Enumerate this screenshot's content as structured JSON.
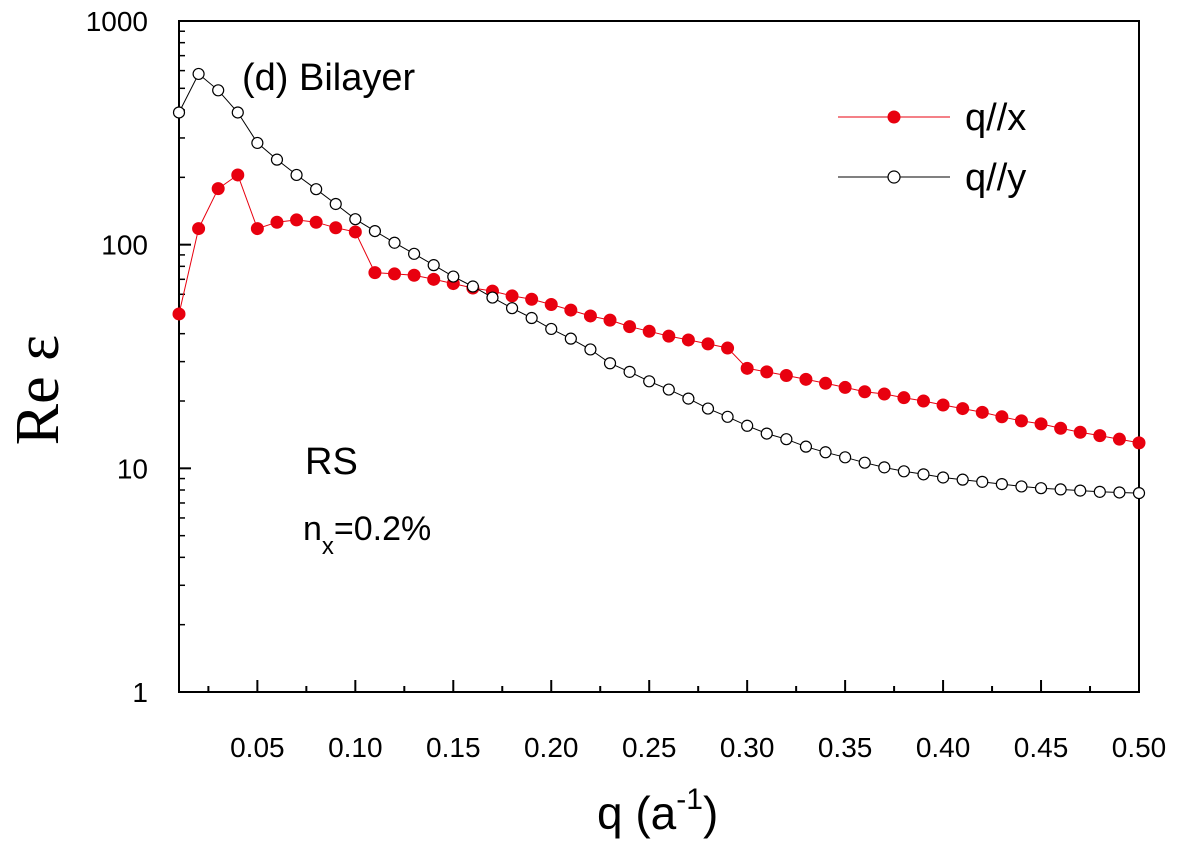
{
  "chart_data": {
    "type": "line",
    "title": "(d) Bilayer",
    "xlabel": {
      "base": "q (a",
      "sup": "-1",
      "end": ")"
    },
    "ylabel": "Re ε",
    "xlim": [
      0.01,
      0.5
    ],
    "ylim": [
      1,
      1000
    ],
    "yscale": "log",
    "grid": false,
    "legend_position": "top-right",
    "x_ticks": [
      "0.05",
      "0.10",
      "0.15",
      "0.20",
      "0.25",
      "0.30",
      "0.35",
      "0.40",
      "0.45",
      "0.50"
    ],
    "y_ticks": [
      "1",
      "10",
      "100",
      "1000"
    ],
    "annotations": {
      "line1": "RS",
      "line2_base": "n",
      "line2_sub": "x",
      "line2_end": "=0.2%"
    },
    "x": [
      0.01,
      0.02,
      0.03,
      0.04,
      0.05,
      0.06,
      0.07,
      0.08,
      0.09,
      0.1,
      0.11,
      0.12,
      0.13,
      0.14,
      0.15,
      0.16,
      0.17,
      0.18,
      0.19,
      0.2,
      0.21,
      0.22,
      0.23,
      0.24,
      0.25,
      0.26,
      0.27,
      0.28,
      0.29,
      0.3,
      0.31,
      0.32,
      0.33,
      0.34,
      0.35,
      0.36,
      0.37,
      0.38,
      0.39,
      0.4,
      0.41,
      0.42,
      0.43,
      0.44,
      0.45,
      0.46,
      0.47,
      0.48,
      0.49,
      0.5
    ],
    "series": [
      {
        "name": "q//x",
        "color": "#e8000f",
        "marker": "filled-circle",
        "values": [
          49,
          118,
          178,
          205,
          118,
          126,
          129,
          126,
          119,
          114,
          75,
          74,
          73,
          70,
          67,
          64,
          62,
          59,
          57,
          54,
          51,
          48,
          46,
          43,
          41,
          39,
          37.5,
          36,
          34.5,
          28,
          27,
          26,
          25,
          24,
          23,
          22,
          21.5,
          20.7,
          20,
          19.2,
          18.5,
          17.8,
          17,
          16.3,
          15.8,
          15.1,
          14.5,
          14,
          13.5,
          13
        ]
      },
      {
        "name": "q//y",
        "color": "#000000",
        "marker": "open-circle",
        "values": [
          390,
          580,
          490,
          390,
          285,
          240,
          205,
          177,
          152,
          130,
          115,
          102,
          91,
          81,
          72,
          65,
          58,
          52,
          47,
          42,
          38,
          34,
          29.5,
          27,
          24.5,
          22.5,
          20.5,
          18.5,
          17,
          15.5,
          14.3,
          13.5,
          12.5,
          11.8,
          11.2,
          10.6,
          10.1,
          9.7,
          9.4,
          9.1,
          8.9,
          8.7,
          8.5,
          8.3,
          8.15,
          8.05,
          7.95,
          7.85,
          7.8,
          7.75
        ]
      }
    ]
  }
}
